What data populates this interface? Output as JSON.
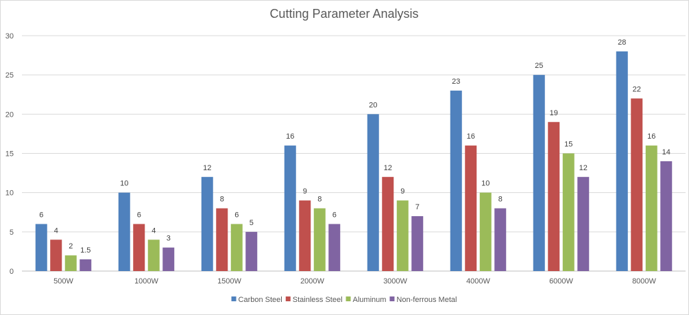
{
  "chart_data": {
    "type": "bar",
    "title": "Cutting Parameter Analysis",
    "xlabel": "",
    "ylabel": "",
    "ylim": [
      0,
      30
    ],
    "yticks": [
      0,
      5,
      10,
      15,
      20,
      25,
      30
    ],
    "grid": true,
    "legend_position": "bottom",
    "categories": [
      "500W",
      "1000W",
      "1500W",
      "2000W",
      "3000W",
      "4000W",
      "6000W",
      "8000W"
    ],
    "series": [
      {
        "name": "Carbon Steel",
        "color": "#4f81bd",
        "values": [
          6,
          10,
          12,
          16,
          20,
          23,
          25,
          28
        ]
      },
      {
        "name": "Stainless Steel",
        "color": "#c0504d",
        "values": [
          4,
          6,
          8,
          9,
          12,
          16,
          19,
          22
        ]
      },
      {
        "name": "Aluminum",
        "color": "#9bbb59",
        "values": [
          2,
          4,
          6,
          8,
          9,
          10,
          15,
          16
        ]
      },
      {
        "name": "Non-ferrous Metal",
        "color": "#8064a2",
        "values": [
          1.5,
          3,
          5,
          6,
          7,
          8,
          12,
          14
        ]
      }
    ]
  }
}
